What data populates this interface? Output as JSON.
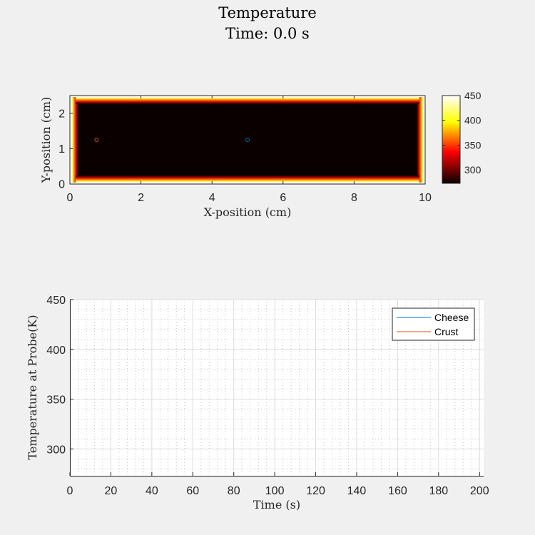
{
  "figure": {
    "title_line1": "Temperature",
    "title_line2": "Time: 0.0 s"
  },
  "chart_data": [
    {
      "type": "heatmap",
      "title": "",
      "xlabel": "X-position (cm)",
      "ylabel": "Y-position (cm)",
      "xlim": [
        0,
        10
      ],
      "ylim": [
        0,
        2.5
      ],
      "x_ticks": [
        0,
        2,
        4,
        6,
        8,
        10
      ],
      "x_tick_labels": [
        "0",
        "2",
        "4",
        "6",
        "8",
        "10"
      ],
      "y_ticks": [
        0,
        1,
        2
      ],
      "y_tick_labels": [
        "0",
        "1",
        "2"
      ],
      "interior_value": 273,
      "boundary_value": 450,
      "colormap": "hot",
      "colorbar": {
        "range": [
          273,
          450
        ],
        "ticks": [
          300,
          350,
          400,
          450
        ],
        "tick_labels": [
          "300",
          "350",
          "400",
          "450"
        ]
      },
      "probes": [
        {
          "x": 0.75,
          "y": 1.25,
          "color": "#d95319"
        },
        {
          "x": 5.0,
          "y": 1.25,
          "color": "#0072bd"
        }
      ]
    },
    {
      "type": "line",
      "title": "",
      "xlabel": "Time (s)",
      "ylabel": "Temperature at Probe(K)",
      "xlim": [
        0,
        202
      ],
      "ylim": [
        273,
        450
      ],
      "x_ticks": [
        0,
        20,
        40,
        60,
        80,
        100,
        120,
        140,
        160,
        180,
        200
      ],
      "x_tick_labels": [
        "0",
        "20",
        "40",
        "60",
        "80",
        "100",
        "120",
        "140",
        "160",
        "180",
        "200"
      ],
      "y_ticks": [
        300,
        350,
        400,
        450
      ],
      "y_tick_labels": [
        "300",
        "350",
        "400",
        "450"
      ],
      "grid": true,
      "minor_grid": true,
      "legend_position": "top-right",
      "series": [
        {
          "name": "Cheese",
          "color": "#0072bd",
          "x": [],
          "y": []
        },
        {
          "name": "Crust",
          "color": "#d95319",
          "x": [],
          "y": []
        }
      ]
    }
  ]
}
